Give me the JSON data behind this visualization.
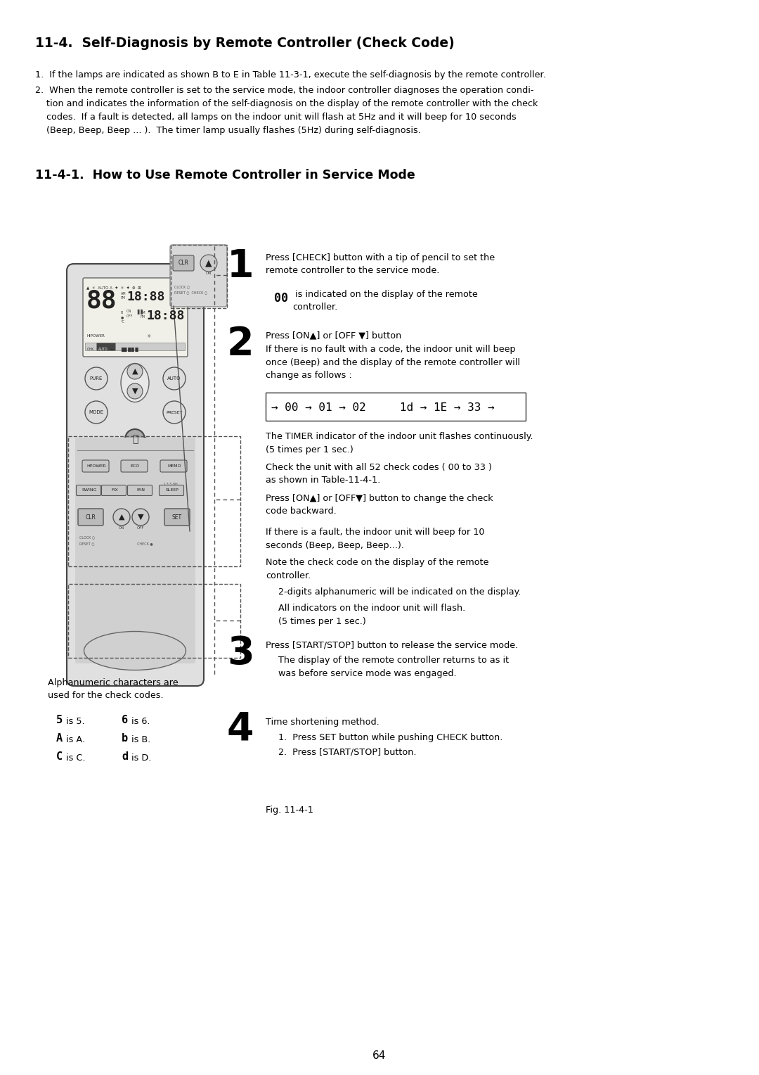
{
  "title": "11-4.  Self-Diagnosis by Remote Controller (Check Code)",
  "subtitle1": "11-4-1.  How to Use Remote Controller in Service Mode",
  "page_number": "64",
  "fig_label": "Fig. 11-4-1",
  "bg_color": "#ffffff",
  "text_color": "#000000",
  "body_font_size": 9.2,
  "title_font_size": 13.5,
  "subtitle_font_size": 12.5
}
